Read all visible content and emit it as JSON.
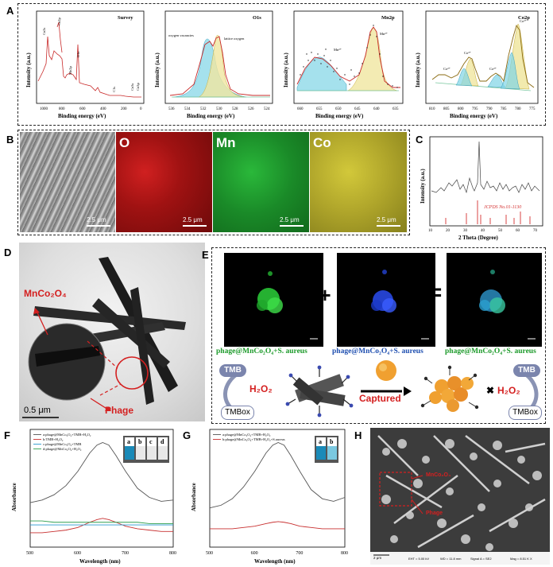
{
  "panel_labels": {
    "a": "A",
    "b": "B",
    "c": "C",
    "d": "D",
    "e": "E",
    "f": "F",
    "g": "G",
    "h": "H"
  },
  "xps": {
    "ylabel": "Intensity (a.u.)",
    "xlabel": "Binding energy (eV)",
    "survey": {
      "title": "Survey",
      "ticks": [
        "1000",
        "800",
        "600",
        "400",
        "200",
        "0"
      ],
      "peaks": [
        "Co2s",
        "Co2p",
        "Mn2p",
        "O1s",
        "C1s",
        "Co3s",
        "Co3p"
      ]
    },
    "o1s": {
      "title": "O1s",
      "ticks": [
        "536",
        "534",
        "532",
        "530",
        "528",
        "526",
        "524"
      ],
      "annotations": [
        "oxygen vacancies",
        "lattice oxygen"
      ]
    },
    "mn2p": {
      "title": "Mn2p",
      "ticks": [
        "660",
        "655",
        "650",
        "645",
        "640",
        "635"
      ],
      "annotations": [
        "Mn³⁺",
        "Mn³⁺"
      ]
    },
    "co2p": {
      "title": "Co2p",
      "ticks": [
        "810",
        "805",
        "800",
        "795",
        "790",
        "785",
        "780",
        "775"
      ],
      "annotations": [
        "Co²⁺",
        "Co³⁺",
        "Co²⁺",
        "Co³⁺"
      ]
    }
  },
  "eds": {
    "labels": [
      "O",
      "Mn",
      "Co"
    ],
    "scale": [
      "2.5 μm",
      "2.5 μm",
      "2.5 μm",
      "2.5 μm"
    ],
    "colors": {
      "o": "#b01818",
      "mn": "#1f9a2c",
      "co": "#b8b020"
    }
  },
  "xrd": {
    "ylabel": "Intensity (a.u.)",
    "xlabel": "2 Theta (Degree)",
    "ref": "JCPDS No.01-1130",
    "ticks": [
      "10",
      "20",
      "30",
      "40",
      "50",
      "60",
      "70"
    ]
  },
  "tem": {
    "label_compound": "MnCo₂O₄",
    "label_phage": "Phage",
    "scale": "0.5 μm"
  },
  "confocal": {
    "captions": [
      "phage@MnCo₂O₄+S. aureus",
      "phage@MnCo₂O₄+S. aureus",
      "phage@MnCo₂O₄+S. aureus"
    ],
    "plus": "+",
    "equals": "=",
    "tmb": "TMB",
    "tmbox": "TMBox",
    "h2o2": "H₂O₂",
    "captured": "Captured",
    "cross": "✖"
  },
  "colors": {
    "accent_red": "#d42020",
    "green": "#1c9a2a",
    "blue": "#1f4fb0",
    "node": "#8a93b4"
  },
  "chart_data": [
    {
      "panel": "F",
      "type": "line",
      "xlabel": "Wavelength (nm)",
      "ylabel": "Absorbance",
      "xlim": [
        500,
        800
      ],
      "x": [
        500,
        525,
        550,
        575,
        600,
        625,
        640,
        652,
        665,
        680,
        700,
        725,
        750,
        775,
        800
      ],
      "series": [
        {
          "name": "a:phage@MnCo₂O₄+TMB+H₂O₂",
          "color": "#555555",
          "values": [
            0.34,
            0.36,
            0.4,
            0.47,
            0.58,
            0.72,
            0.78,
            0.8,
            0.78,
            0.7,
            0.58,
            0.45,
            0.38,
            0.35,
            0.36
          ]
        },
        {
          "name": "b:TMB+H₂O₂",
          "color": "#c83030",
          "values": [
            0.11,
            0.11,
            0.12,
            0.13,
            0.15,
            0.19,
            0.21,
            0.22,
            0.21,
            0.19,
            0.16,
            0.14,
            0.13,
            0.12,
            0.12
          ]
        },
        {
          "name": "c:phage@MnCo₂O₄+TMB",
          "color": "#2a9ad0",
          "values": [
            0.17,
            0.17,
            0.17,
            0.17,
            0.17,
            0.17,
            0.17,
            0.17,
            0.17,
            0.17,
            0.17,
            0.17,
            0.17,
            0.17,
            0.17
          ]
        },
        {
          "name": "d:phage@MnCo₂O₄+H₂O₂",
          "color": "#30a050",
          "values": [
            0.2,
            0.2,
            0.19,
            0.19,
            0.19,
            0.19,
            0.19,
            0.19,
            0.19,
            0.19,
            0.19,
            0.19,
            0.18,
            0.18,
            0.18
          ]
        }
      ],
      "xticks": [
        "500",
        "600",
        "700",
        "800"
      ],
      "inset_labels": [
        "a",
        "b",
        "c",
        "d"
      ]
    },
    {
      "panel": "G",
      "type": "line",
      "xlabel": "Wavelength (nm)",
      "ylabel": "Absorbance",
      "xlim": [
        500,
        800
      ],
      "x": [
        500,
        525,
        550,
        575,
        600,
        625,
        640,
        652,
        665,
        680,
        700,
        725,
        750,
        775,
        800
      ],
      "series": [
        {
          "name": "a:phage@MnCo₂O₄+TMB+H₂O₂",
          "color": "#555555",
          "values": [
            0.3,
            0.32,
            0.37,
            0.46,
            0.58,
            0.72,
            0.78,
            0.8,
            0.78,
            0.7,
            0.58,
            0.44,
            0.37,
            0.35,
            0.38
          ]
        },
        {
          "name": "b:phage@MnCo₂O₄+TMB+H₂O₂+S.aureus",
          "color": "#c83030",
          "values": [
            0.14,
            0.14,
            0.14,
            0.15,
            0.16,
            0.18,
            0.19,
            0.195,
            0.19,
            0.18,
            0.16,
            0.15,
            0.14,
            0.14,
            0.14
          ]
        }
      ],
      "xticks": [
        "500",
        "600",
        "700",
        "800"
      ],
      "inset_labels": [
        "a",
        "b"
      ]
    }
  ],
  "sem": {
    "label_compound": "MnCo₂O₄",
    "label_phage": "Phage",
    "scale": "2 μm",
    "footer": [
      "EHT = 5.00 kV",
      "WD = 11.8 mm",
      "Signal A = SE2",
      "Mag = 8.51 K X"
    ]
  }
}
